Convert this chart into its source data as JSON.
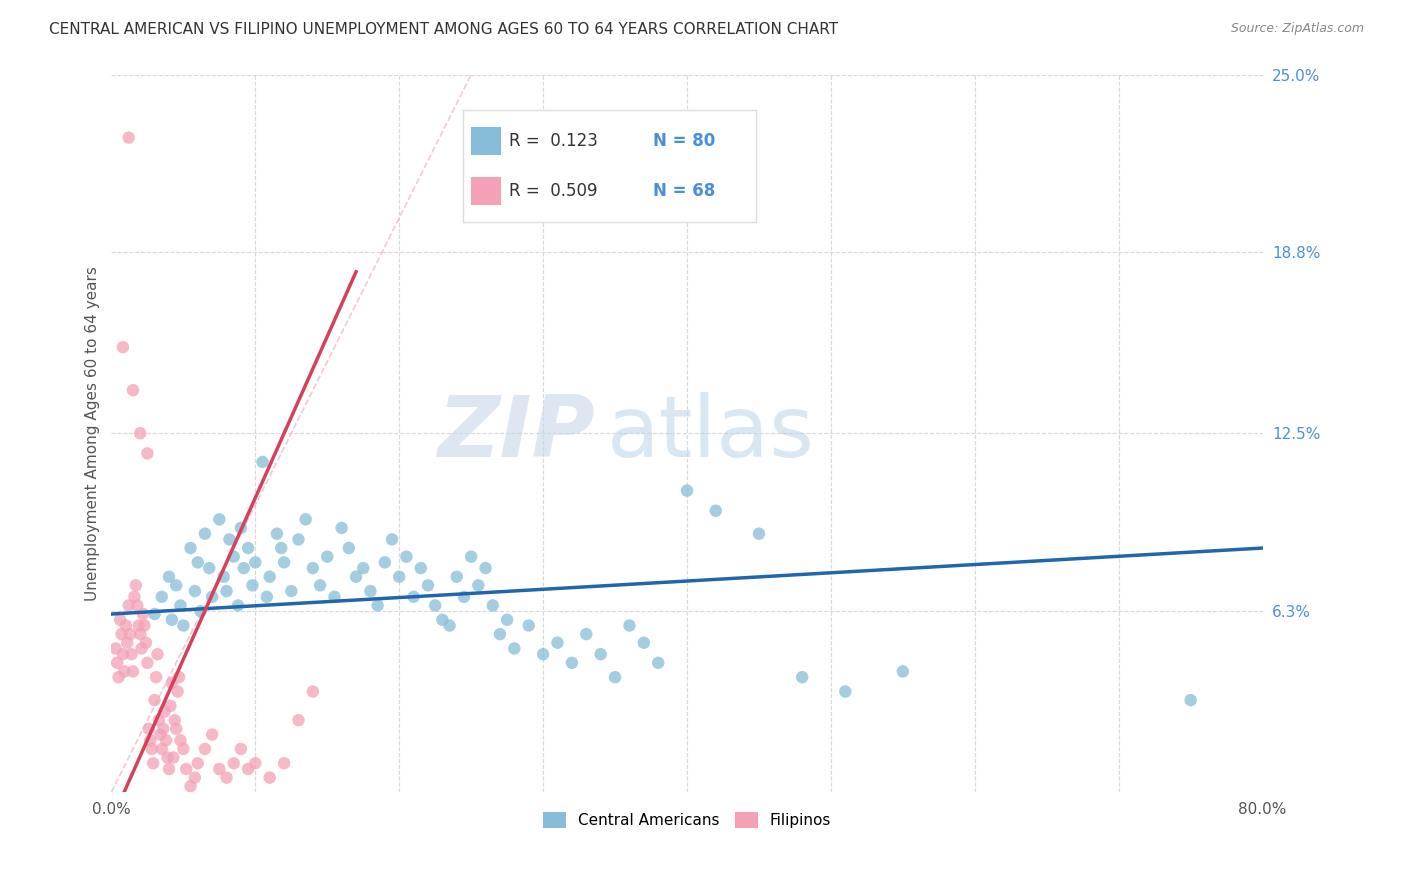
{
  "title": "CENTRAL AMERICAN VS FILIPINO UNEMPLOYMENT AMONG AGES 60 TO 64 YEARS CORRELATION CHART",
  "source": "Source: ZipAtlas.com",
  "ylabel": "Unemployment Among Ages 60 to 64 years",
  "xlim": [
    0,
    0.8
  ],
  "ylim": [
    0,
    0.25
  ],
  "ytick_right_labels": [
    "6.3%",
    "12.5%",
    "18.8%",
    "25.0%"
  ],
  "ytick_right_values": [
    0.063,
    0.125,
    0.188,
    0.25
  ],
  "color_blue": "#87bdd8",
  "color_pink": "#f4a0b5",
  "color_blue_dark": "#2166ac",
  "color_pink_dark": "#d6405a",
  "color_blue_text": "#4a90d9",
  "grid_color": "#d8d8d8",
  "ca_x": [
    0.03,
    0.035,
    0.04,
    0.042,
    0.045,
    0.048,
    0.05,
    0.055,
    0.058,
    0.06,
    0.062,
    0.065,
    0.068,
    0.07,
    0.075,
    0.078,
    0.08,
    0.082,
    0.085,
    0.088,
    0.09,
    0.092,
    0.095,
    0.098,
    0.1,
    0.105,
    0.108,
    0.11,
    0.115,
    0.118,
    0.12,
    0.125,
    0.13,
    0.135,
    0.14,
    0.145,
    0.15,
    0.155,
    0.16,
    0.165,
    0.17,
    0.175,
    0.18,
    0.185,
    0.19,
    0.195,
    0.2,
    0.205,
    0.21,
    0.215,
    0.22,
    0.225,
    0.23,
    0.235,
    0.24,
    0.245,
    0.25,
    0.255,
    0.26,
    0.265,
    0.27,
    0.275,
    0.28,
    0.29,
    0.3,
    0.31,
    0.32,
    0.33,
    0.34,
    0.35,
    0.36,
    0.37,
    0.38,
    0.4,
    0.42,
    0.45,
    0.48,
    0.51,
    0.55,
    0.75
  ],
  "ca_y": [
    0.062,
    0.068,
    0.075,
    0.06,
    0.072,
    0.065,
    0.058,
    0.085,
    0.07,
    0.08,
    0.063,
    0.09,
    0.078,
    0.068,
    0.095,
    0.075,
    0.07,
    0.088,
    0.082,
    0.065,
    0.092,
    0.078,
    0.085,
    0.072,
    0.08,
    0.115,
    0.068,
    0.075,
    0.09,
    0.085,
    0.08,
    0.07,
    0.088,
    0.095,
    0.078,
    0.072,
    0.082,
    0.068,
    0.092,
    0.085,
    0.075,
    0.078,
    0.07,
    0.065,
    0.08,
    0.088,
    0.075,
    0.082,
    0.068,
    0.078,
    0.072,
    0.065,
    0.06,
    0.058,
    0.075,
    0.068,
    0.082,
    0.072,
    0.078,
    0.065,
    0.055,
    0.06,
    0.05,
    0.058,
    0.048,
    0.052,
    0.045,
    0.055,
    0.048,
    0.04,
    0.058,
    0.052,
    0.045,
    0.105,
    0.098,
    0.09,
    0.04,
    0.035,
    0.042,
    0.032
  ],
  "fil_x": [
    0.003,
    0.004,
    0.005,
    0.006,
    0.007,
    0.008,
    0.009,
    0.01,
    0.011,
    0.012,
    0.013,
    0.014,
    0.015,
    0.016,
    0.017,
    0.018,
    0.019,
    0.02,
    0.021,
    0.022,
    0.023,
    0.024,
    0.025,
    0.026,
    0.027,
    0.028,
    0.029,
    0.03,
    0.031,
    0.032,
    0.033,
    0.034,
    0.035,
    0.036,
    0.037,
    0.038,
    0.039,
    0.04,
    0.041,
    0.042,
    0.043,
    0.044,
    0.045,
    0.046,
    0.047,
    0.048,
    0.05,
    0.052,
    0.055,
    0.058,
    0.06,
    0.065,
    0.07,
    0.075,
    0.08,
    0.085,
    0.09,
    0.095,
    0.1,
    0.11,
    0.12,
    0.13,
    0.14,
    0.012,
    0.008,
    0.015,
    0.02,
    0.025
  ],
  "fil_y": [
    0.05,
    0.045,
    0.04,
    0.06,
    0.055,
    0.048,
    0.042,
    0.058,
    0.052,
    0.065,
    0.055,
    0.048,
    0.042,
    0.068,
    0.072,
    0.065,
    0.058,
    0.055,
    0.05,
    0.062,
    0.058,
    0.052,
    0.045,
    0.022,
    0.018,
    0.015,
    0.01,
    0.032,
    0.04,
    0.048,
    0.025,
    0.02,
    0.015,
    0.022,
    0.028,
    0.018,
    0.012,
    0.008,
    0.03,
    0.038,
    0.012,
    0.025,
    0.022,
    0.035,
    0.04,
    0.018,
    0.015,
    0.008,
    0.002,
    0.005,
    0.01,
    0.015,
    0.02,
    0.008,
    0.005,
    0.01,
    0.015,
    0.008,
    0.01,
    0.005,
    0.01,
    0.025,
    0.035,
    0.228,
    0.155,
    0.14,
    0.125,
    0.118
  ]
}
